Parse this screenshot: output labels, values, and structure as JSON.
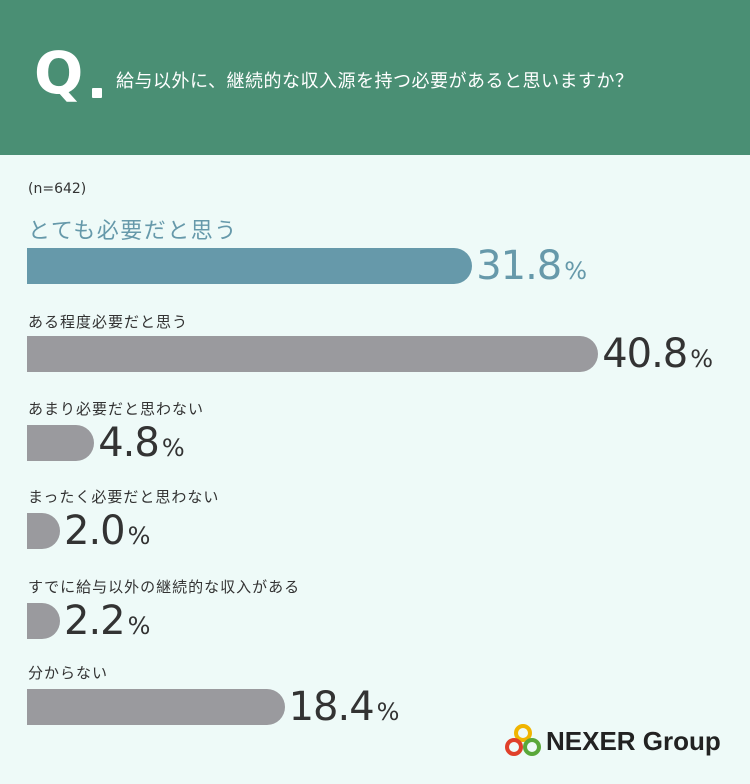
{
  "header": {
    "q_mark": "Q",
    "question": "給与以外に、継続的な収入源を持つ必要があると思いますか？"
  },
  "sample_size": "(n=642)",
  "colors": {
    "header_bg": "#4a8f74",
    "highlight": "#6699aa",
    "bar": "#9a9a9e",
    "background": "#eefaf8"
  },
  "chart_data": {
    "type": "bar",
    "orientation": "horizontal",
    "unit": "%",
    "categories": [
      "とても必要だと思う",
      "ある程度必要だと思う",
      "あまり必要だと思わない",
      "まったく必要だと思わない",
      "すでに給与以外の継続的な収入がある",
      "分からない"
    ],
    "values": [
      31.8,
      40.8,
      4.8,
      2.0,
      2.2,
      18.4
    ],
    "value_labels": [
      "31.8",
      "40.8",
      "4.8",
      "2.0",
      "2.2",
      "18.4"
    ],
    "highlight_index": 0
  },
  "logo": {
    "text": "NEXER Group"
  }
}
